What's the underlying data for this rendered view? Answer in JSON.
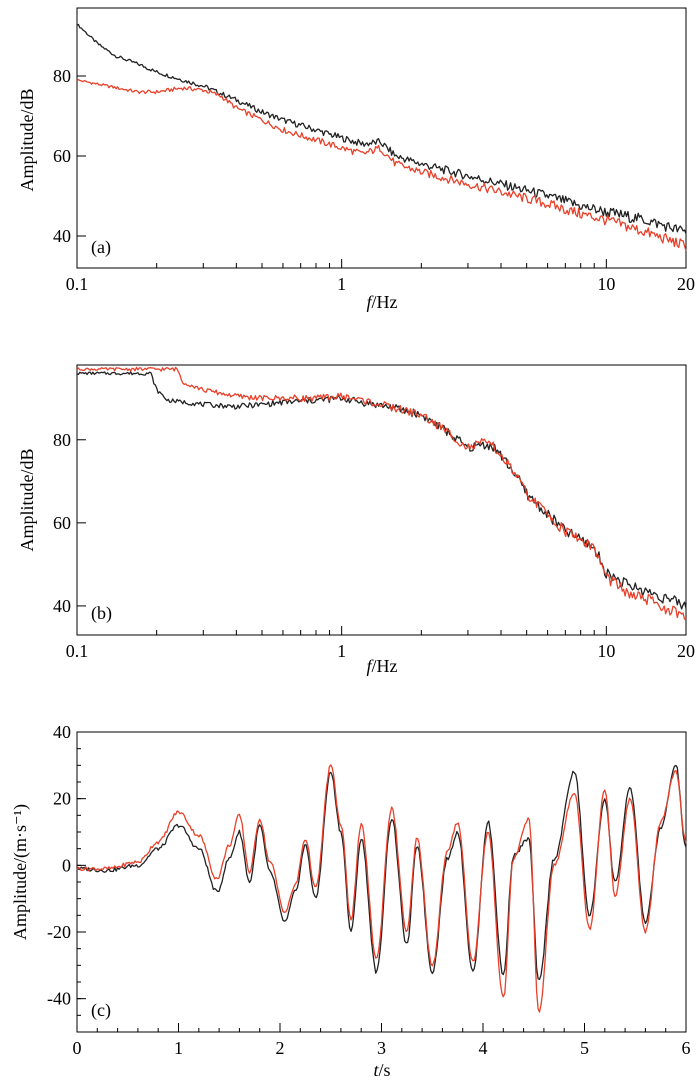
{
  "colors": {
    "black_series": "#222222",
    "red_series": "#e8402a",
    "axis": "#000000"
  },
  "chart_data": [
    {
      "id": "a",
      "type": "line",
      "panel_label": "(a)",
      "xscale": "log",
      "xlabel_italic": "f",
      "xlabel_unit": "/Hz",
      "ylabel": "Amplitude/dB",
      "xlim": [
        0.1,
        20
      ],
      "ylim": [
        32,
        97
      ],
      "xticks": [
        0.1,
        1,
        10,
        20
      ],
      "xtick_labels": [
        "0.1",
        "1",
        "10",
        "20"
      ],
      "yticks": [
        40,
        60,
        80
      ],
      "ytick_labels": [
        "40",
        "60",
        "80"
      ],
      "series": [
        {
          "name": "black",
          "color": "#222222",
          "x": [
            0.1,
            0.12,
            0.14,
            0.17,
            0.2,
            0.25,
            0.3,
            0.4,
            0.5,
            0.6,
            0.8,
            1.0,
            1.2,
            1.4,
            1.6,
            2.0,
            3.0,
            4.0,
            6.0,
            8.0,
            10.0,
            14.0,
            20.0
          ],
          "y": [
            93,
            88,
            85,
            83,
            81,
            79,
            77.5,
            74,
            71,
            69,
            66.5,
            64.5,
            63,
            63.5,
            60,
            58,
            55,
            53,
            50,
            47.5,
            46,
            44,
            41
          ]
        },
        {
          "name": "red",
          "color": "#e8402a",
          "x": [
            0.1,
            0.13,
            0.17,
            0.2,
            0.25,
            0.3,
            0.35,
            0.4,
            0.5,
            0.6,
            0.8,
            1.0,
            1.2,
            1.4,
            1.6,
            2.0,
            3.0,
            4.0,
            6.0,
            8.0,
            10.0,
            14.0,
            20.0
          ],
          "y": [
            79,
            77.5,
            76,
            76,
            77,
            76.5,
            75,
            72,
            69,
            66.5,
            64,
            62,
            60.5,
            62,
            58,
            56,
            53,
            51,
            48,
            45.5,
            44,
            41,
            37.5
          ]
        }
      ]
    },
    {
      "id": "b",
      "type": "line",
      "panel_label": "(b)",
      "xscale": "log",
      "xlabel_italic": "f",
      "xlabel_unit": "/Hz",
      "ylabel": "Amplitude/dB",
      "xlim": [
        0.1,
        20
      ],
      "ylim": [
        33,
        98
      ],
      "xticks": [
        0.1,
        1,
        10,
        20
      ],
      "xtick_labels": [
        "0.1",
        "1",
        "10",
        "20"
      ],
      "yticks": [
        40,
        60,
        80
      ],
      "ytick_labels": [
        "40",
        "60",
        "80"
      ],
      "series": [
        {
          "name": "black",
          "color": "#222222",
          "x": [
            0.1,
            0.19,
            0.2,
            0.22,
            0.3,
            0.4,
            0.5,
            0.6,
            0.8,
            1.0,
            1.2,
            1.5,
            2.0,
            2.5,
            3.0,
            3.5,
            3.8,
            4.5,
            5.0,
            6.0,
            7.0,
            8.0,
            9.0,
            10.0,
            12.0,
            15.0,
            20.0
          ],
          "y": [
            96,
            96,
            92,
            89.5,
            88.5,
            88,
            88.5,
            89,
            89.5,
            90,
            89,
            88,
            86,
            82,
            78,
            79,
            78,
            72,
            67,
            62,
            58,
            56,
            54,
            48,
            45,
            43,
            40
          ]
        },
        {
          "name": "red",
          "color": "#e8402a",
          "x": [
            0.1,
            0.24,
            0.25,
            0.3,
            0.4,
            0.5,
            0.6,
            0.8,
            1.0,
            1.2,
            1.5,
            2.0,
            2.5,
            3.0,
            3.5,
            3.8,
            4.5,
            5.0,
            6.0,
            7.0,
            8.0,
            9.0,
            10.0,
            12.0,
            15.0,
            20.0
          ],
          "y": [
            97,
            97,
            94,
            92,
            90.5,
            90,
            90,
            90,
            90.5,
            89.5,
            88,
            86,
            82,
            78,
            79.5,
            78,
            72,
            67,
            62,
            58,
            56,
            54,
            47,
            43,
            41,
            37
          ]
        }
      ]
    },
    {
      "id": "c",
      "type": "line",
      "panel_label": "(c)",
      "xscale": "linear",
      "xlabel_italic": "t",
      "xlabel_unit": "/s",
      "ylabel": "Amplitude/(m·s⁻¹)",
      "xlim": [
        0,
        6
      ],
      "ylim": [
        -50,
        40
      ],
      "xticks": [
        0,
        1,
        2,
        3,
        4,
        5,
        6
      ],
      "xtick_labels": [
        "0",
        "1",
        "2",
        "3",
        "4",
        "5",
        "6"
      ],
      "yticks": [
        -40,
        -20,
        0,
        20,
        40
      ],
      "ytick_labels": [
        "-40",
        "-20",
        "0",
        "20",
        "40"
      ],
      "series": [
        {
          "name": "black",
          "color": "#222222",
          "x": [
            0,
            0.3,
            0.6,
            0.8,
            1.0,
            1.2,
            1.38,
            1.5,
            1.6,
            1.7,
            1.8,
            1.9,
            2.05,
            2.15,
            2.25,
            2.35,
            2.5,
            2.6,
            2.7,
            2.8,
            2.95,
            3.1,
            3.25,
            3.35,
            3.5,
            3.65,
            3.75,
            3.9,
            4.05,
            4.2,
            4.3,
            4.45,
            4.55,
            4.7,
            4.9,
            5.05,
            5.2,
            5.3,
            5.45,
            5.6,
            5.75,
            5.9,
            6.0
          ],
          "y": [
            -1,
            -1.5,
            0,
            5,
            12,
            5,
            -8,
            2,
            10,
            -5,
            12,
            -2,
            -17,
            -8,
            6,
            -10,
            28,
            10,
            -20,
            8,
            -32,
            14,
            -24,
            6,
            -32,
            2,
            10,
            -32,
            13,
            -33,
            3,
            8,
            -35,
            2,
            28,
            -15,
            20,
            -5,
            23,
            -17,
            11,
            30,
            5
          ]
        },
        {
          "name": "red",
          "color": "#e8402a",
          "x": [
            0,
            0.3,
            0.6,
            0.8,
            1.0,
            1.2,
            1.38,
            1.5,
            1.6,
            1.7,
            1.8,
            1.9,
            2.05,
            2.15,
            2.25,
            2.35,
            2.5,
            2.6,
            2.7,
            2.8,
            2.95,
            3.1,
            3.25,
            3.35,
            3.5,
            3.65,
            3.75,
            3.9,
            4.05,
            4.2,
            4.3,
            4.45,
            4.55,
            4.7,
            4.9,
            5.05,
            5.2,
            5.3,
            5.45,
            5.6,
            5.75,
            5.9,
            6.0
          ],
          "y": [
            -1,
            -1,
            1,
            7,
            16,
            9,
            -4,
            6,
            15,
            -2,
            14,
            1,
            -14,
            -6,
            8,
            -7,
            30,
            12,
            -16,
            12,
            -28,
            17,
            -20,
            8,
            -30,
            4,
            13,
            -29,
            10,
            -40,
            2,
            14,
            -44,
            0,
            22,
            -19,
            23,
            -9,
            20,
            -20,
            13,
            28,
            7
          ]
        }
      ]
    }
  ]
}
